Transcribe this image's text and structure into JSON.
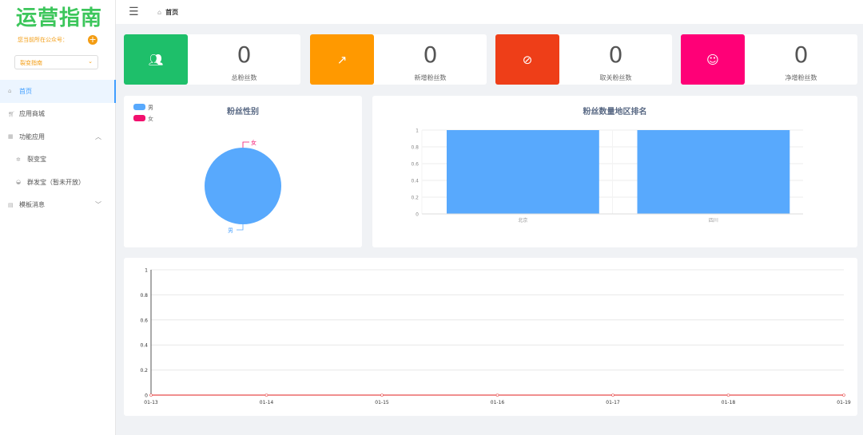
{
  "sidebar": {
    "logo": "运营指南",
    "account_label": "您当前所在公众号：",
    "account_select": "裂变指南",
    "items": [
      {
        "label": "首页",
        "icon": "home-icon",
        "active": true
      },
      {
        "label": "应用商城",
        "icon": "cart-icon"
      },
      {
        "label": "功能应用",
        "icon": "grid-icon",
        "expanded": true
      },
      {
        "label": "裂变宝",
        "icon": "gear-icon",
        "sub": true
      },
      {
        "label": "群发宝（暂未开放）",
        "icon": "group-icon",
        "sub": true
      },
      {
        "label": "模板消息",
        "icon": "template-icon",
        "expanded": false
      }
    ]
  },
  "header": {
    "breadcrumb": "首页"
  },
  "stats": [
    {
      "value": "0",
      "label": "总粉丝数",
      "color": "#1ebf6a",
      "icon": "users-icon"
    },
    {
      "value": "0",
      "label": "新增粉丝数",
      "color": "#ff9900",
      "icon": "trend-up-icon"
    },
    {
      "value": "0",
      "label": "取关粉丝数",
      "color": "#ee3e18",
      "icon": "eye-off-icon"
    },
    {
      "value": "0",
      "label": "净增粉丝数",
      "color": "#ff0077",
      "icon": "smile-icon"
    }
  ],
  "chart_data": [
    {
      "type": "pie",
      "title": "粉丝性别",
      "legend": [
        "男",
        "女"
      ],
      "legend_position": "top-left",
      "values": [
        {
          "name": "男",
          "value": 1,
          "color": "#58a9fd"
        },
        {
          "name": "女",
          "value": 0,
          "color": "#f2106e"
        }
      ]
    },
    {
      "type": "bar",
      "title": "粉丝数量地区排名",
      "categories": [
        "北京",
        "四川"
      ],
      "values": [
        1,
        1
      ],
      "ylim": [
        0,
        1
      ],
      "yticks": [
        "0",
        "0.2",
        "0.4",
        "0.6",
        "0.8",
        "1"
      ],
      "color": "#58a9fd",
      "grid": true
    },
    {
      "type": "line",
      "title": "",
      "x": [
        "01-13",
        "01-14",
        "01-15",
        "01-16",
        "01-17",
        "01-18",
        "01-19"
      ],
      "values": [
        0,
        0,
        0,
        0,
        0,
        0,
        0
      ],
      "ylim": [
        0,
        1
      ],
      "yticks": [
        "0",
        "0.2",
        "0.4",
        "0.6",
        "0.8",
        "1"
      ],
      "color": "#e84a4a",
      "grid": true
    }
  ]
}
